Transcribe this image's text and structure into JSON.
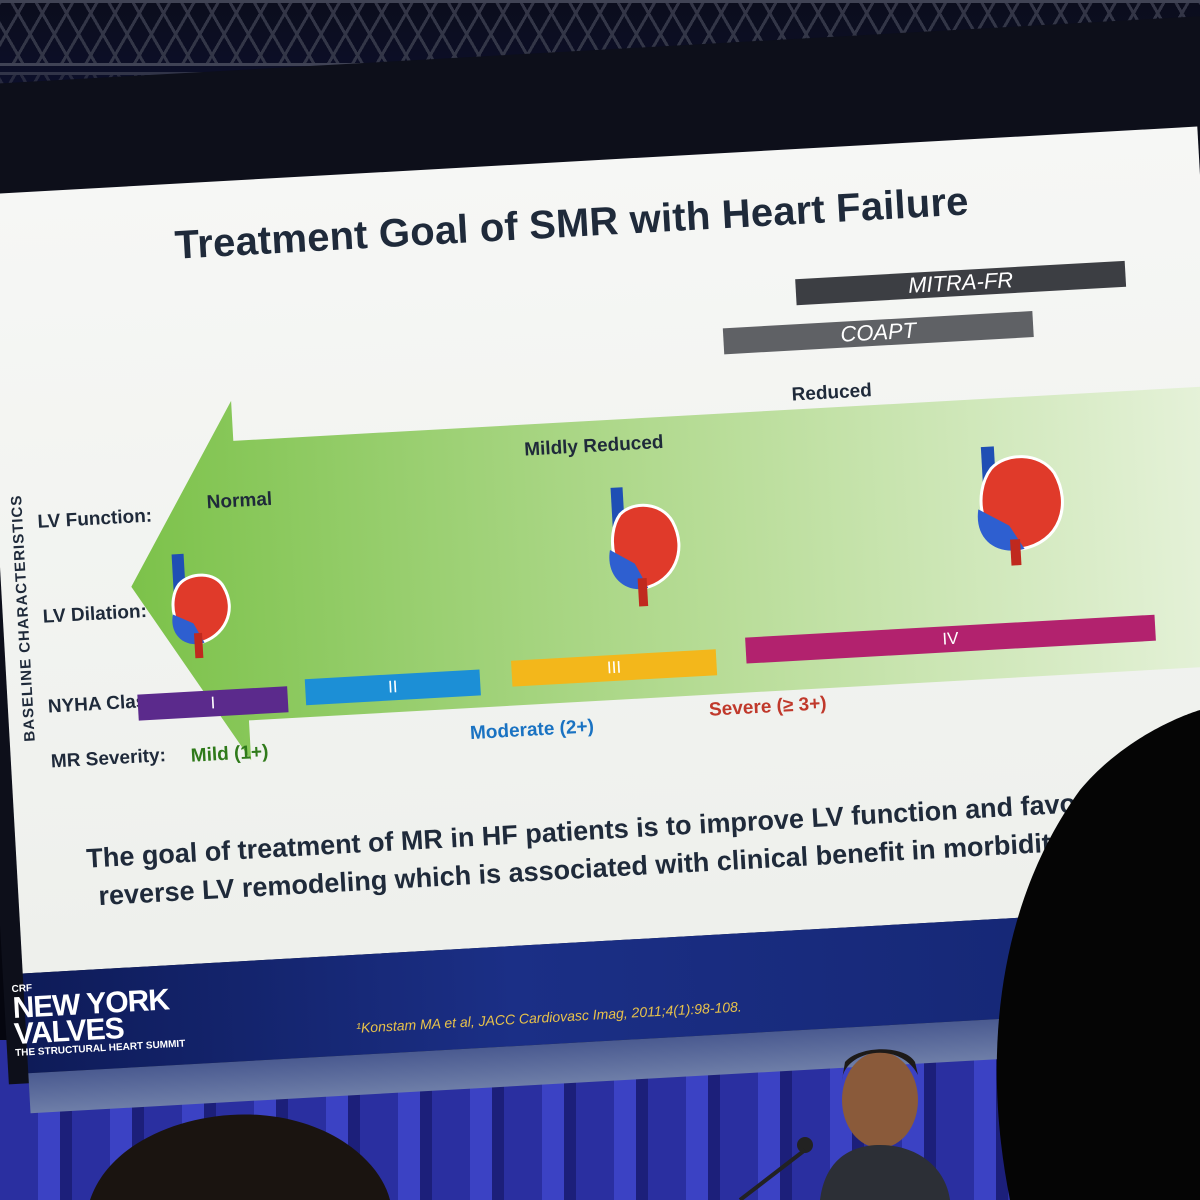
{
  "slide": {
    "title": "Treatment Goal of SMR with Heart Failure",
    "trials": [
      {
        "label": "MITRA-FR",
        "color": "#3c3e43"
      },
      {
        "label": "COAPT",
        "color": "#5f6165"
      }
    ],
    "side_label": "BASELINE CHARACTERISTICS",
    "row_labels": [
      "LV Function:",
      "LV Dilation:",
      "NYHA Class:",
      "MR Severity:"
    ],
    "lv_function": [
      "Normal",
      "Mildly Reduced",
      "Reduced"
    ],
    "nyha": [
      {
        "label": "I",
        "color": "#5b2a8c"
      },
      {
        "label": "II",
        "color": "#1c8fd6"
      },
      {
        "label": "III",
        "color": "#f3b71b"
      },
      {
        "label": "IV",
        "color": "#b2226e"
      }
    ],
    "mr_severity": [
      {
        "label": "Mild (1+)",
        "color": "#2f7a1a"
      },
      {
        "label": "Moderate (2+)",
        "color": "#1a73c2"
      },
      {
        "label": "Severe (≥ 3+)",
        "color": "#c0392b"
      }
    ],
    "goal_text": [
      "The goal of treatment of MR in HF patients is to improve LV function and favor",
      "reverse LV remodeling which is associated with clinical benefit in morbidit"
    ],
    "brand": {
      "line1": "NEW YORK",
      "line2": "VALVES",
      "tagline": "THE STRUCTURAL HEART SUMMIT",
      "prefix": "CRF"
    },
    "citation": "¹Konstam MA et al, JACC Cardiovasc Imag, 2011;4(1):98-108."
  },
  "colors": {
    "arrow": "#7cc24a",
    "arrow_light": "#dff0d0",
    "slide_bg": "#f2f3f0"
  },
  "icons": [
    "heart-normal-icon",
    "heart-mild-icon",
    "heart-dilated-icon"
  ]
}
